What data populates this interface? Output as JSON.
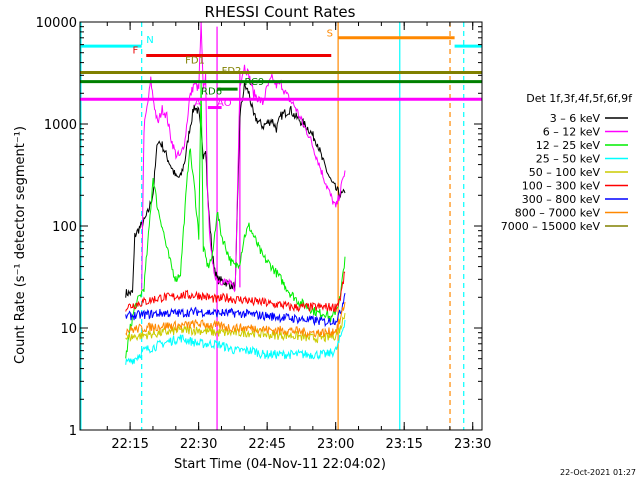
{
  "chart_data": {
    "type": "line",
    "title": "RHESSI Count Rates",
    "xlabel": "Start Time (04-Nov-11 22:04:02)",
    "ylabel": "Count Rate (s⁻¹ detector segment⁻¹)",
    "yscale": "log",
    "ylim": [
      1,
      10000
    ],
    "xlim_minutes_after_start": [
      0,
      88
    ],
    "yticks": [
      1,
      10,
      100,
      1000,
      10000
    ],
    "ytick_labels": [
      "1",
      "10",
      "100",
      "1000",
      "10000"
    ],
    "xticks": [
      "22:15",
      "22:30",
      "22:45",
      "23:00",
      "23:15",
      "23:30"
    ],
    "legend": {
      "title": "Det 1f,3f,4f,5f,6f,9f",
      "placement": "right"
    },
    "series": [
      {
        "name": "3 – 6 keV",
        "color": "#000000",
        "points": [
          [
            10.0,
            22
          ],
          [
            11.5,
            22
          ],
          [
            12,
            80
          ],
          [
            13,
            95
          ],
          [
            14,
            110
          ],
          [
            15,
            140
          ],
          [
            16,
            210
          ],
          [
            17,
            700
          ],
          [
            17.5,
            650
          ],
          [
            18,
            620
          ],
          [
            19,
            480
          ],
          [
            20,
            380
          ],
          [
            21,
            300
          ],
          [
            22,
            300
          ],
          [
            23,
            450
          ],
          [
            24,
            900
          ],
          [
            25,
            1500
          ],
          [
            26,
            1300
          ],
          [
            27,
            500
          ],
          [
            27.5,
            600
          ],
          [
            28,
            180
          ],
          [
            29,
            50
          ],
          [
            30,
            30
          ],
          [
            32,
            28
          ],
          [
            34,
            25
          ],
          [
            35,
            1200
          ],
          [
            36,
            2400
          ],
          [
            37,
            2000
          ],
          [
            38,
            1200
          ],
          [
            40,
            950
          ],
          [
            42,
            1100
          ],
          [
            43,
            900
          ],
          [
            44,
            1200
          ],
          [
            46,
            1400
          ],
          [
            47,
            1200
          ],
          [
            48,
            1100
          ],
          [
            50,
            900
          ],
          [
            52,
            650
          ],
          [
            53,
            450
          ],
          [
            54,
            350
          ],
          [
            55,
            270
          ],
          [
            56,
            230
          ],
          [
            57,
            200
          ],
          [
            58,
            210
          ]
        ]
      },
      {
        "name": "6 – 12 keV",
        "color": "#ff00ff",
        "points": [
          [
            13.5,
            25
          ],
          [
            14,
            900
          ],
          [
            15,
            1800
          ],
          [
            15.5,
            2700
          ],
          [
            16,
            1800
          ],
          [
            17,
            1000
          ],
          [
            18,
            1400
          ],
          [
            19,
            1200
          ],
          [
            20,
            700
          ],
          [
            21,
            500
          ],
          [
            22,
            480
          ],
          [
            23,
            700
          ],
          [
            24,
            1800
          ],
          [
            25,
            2500
          ],
          [
            26,
            2200
          ],
          [
            26.5,
            9500
          ],
          [
            27,
            2000
          ],
          [
            27.5,
            3000
          ],
          [
            28,
            150
          ],
          [
            29,
            40
          ],
          [
            30,
            30
          ],
          [
            32,
            28
          ],
          [
            34,
            25
          ],
          [
            35,
            2500
          ],
          [
            36,
            3700
          ],
          [
            37,
            3000
          ],
          [
            38,
            2000
          ],
          [
            40,
            1600
          ],
          [
            41,
            2300
          ],
          [
            42,
            2800
          ],
          [
            43,
            2400
          ],
          [
            44,
            2500
          ],
          [
            45,
            2000
          ],
          [
            46,
            1700
          ],
          [
            47,
            1500
          ],
          [
            48,
            1200
          ],
          [
            49,
            950
          ],
          [
            50,
            800
          ],
          [
            51,
            600
          ],
          [
            52,
            450
          ],
          [
            53,
            330
          ],
          [
            54,
            250
          ],
          [
            55,
            190
          ],
          [
            56,
            150
          ],
          [
            57,
            220
          ],
          [
            58,
            350
          ]
        ]
      },
      {
        "name": "12 – 25 keV",
        "color": "#00ee00",
        "points": [
          [
            10.0,
            5
          ],
          [
            11,
            10
          ],
          [
            12,
            16
          ],
          [
            13,
            20
          ],
          [
            14,
            25
          ],
          [
            15,
            80
          ],
          [
            16,
            300
          ],
          [
            17,
            150
          ],
          [
            18,
            100
          ],
          [
            19,
            60
          ],
          [
            20,
            40
          ],
          [
            21,
            30
          ],
          [
            22,
            35
          ],
          [
            23,
            150
          ],
          [
            24,
            600
          ],
          [
            25,
            250
          ],
          [
            26,
            80
          ],
          [
            26.5,
            2500
          ],
          [
            27,
            60
          ],
          [
            28,
            40
          ],
          [
            29,
            50
          ],
          [
            30,
            140
          ],
          [
            31,
            80
          ],
          [
            32,
            60
          ],
          [
            33,
            45
          ],
          [
            34,
            40
          ],
          [
            35,
            45
          ],
          [
            36,
            80
          ],
          [
            37,
            100
          ],
          [
            38,
            80
          ],
          [
            40,
            50
          ],
          [
            42,
            40
          ],
          [
            44,
            30
          ],
          [
            46,
            22
          ],
          [
            48,
            18
          ],
          [
            50,
            16
          ],
          [
            52,
            14
          ],
          [
            54,
            14
          ],
          [
            55,
            12
          ],
          [
            56,
            15
          ],
          [
            57,
            20
          ],
          [
            58,
            50
          ]
        ]
      },
      {
        "name": "25 – 50 keV",
        "color": "#00ffff",
        "points": [
          [
            10.0,
            4.5
          ],
          [
            12,
            5
          ],
          [
            14,
            6
          ],
          [
            16,
            6.5
          ],
          [
            18,
            7
          ],
          [
            20,
            7.5
          ],
          [
            22,
            8
          ],
          [
            24,
            7.5
          ],
          [
            26,
            7
          ],
          [
            28,
            7
          ],
          [
            30,
            7
          ],
          [
            32,
            6.5
          ],
          [
            34,
            6
          ],
          [
            36,
            6
          ],
          [
            38,
            6
          ],
          [
            40,
            5.5
          ],
          [
            42,
            5.5
          ],
          [
            44,
            5.5
          ],
          [
            46,
            5.5
          ],
          [
            48,
            5.5
          ],
          [
            50,
            5.5
          ],
          [
            52,
            5.5
          ],
          [
            54,
            5.5
          ],
          [
            56,
            6
          ],
          [
            57,
            8
          ],
          [
            58,
            12
          ]
        ]
      },
      {
        "name": "50 – 100 keV",
        "color": "#cccc00",
        "points": [
          [
            10.0,
            8
          ],
          [
            14,
            8.5
          ],
          [
            18,
            9
          ],
          [
            22,
            9.5
          ],
          [
            26,
            9.5
          ],
          [
            30,
            9
          ],
          [
            34,
            9
          ],
          [
            38,
            9
          ],
          [
            42,
            8.5
          ],
          [
            46,
            8.5
          ],
          [
            50,
            8
          ],
          [
            54,
            8
          ],
          [
            56,
            8.5
          ],
          [
            57,
            10
          ],
          [
            58,
            14
          ]
        ]
      },
      {
        "name": "100 – 300 keV",
        "color": "#ff0000",
        "points": [
          [
            10.0,
            16
          ],
          [
            12,
            17
          ],
          [
            14,
            18
          ],
          [
            16,
            19
          ],
          [
            18,
            20
          ],
          [
            20,
            20
          ],
          [
            22,
            21
          ],
          [
            24,
            21
          ],
          [
            26,
            21
          ],
          [
            28,
            20
          ],
          [
            30,
            19
          ],
          [
            32,
            20
          ],
          [
            34,
            19
          ],
          [
            36,
            19
          ],
          [
            38,
            18
          ],
          [
            40,
            18
          ],
          [
            42,
            17
          ],
          [
            44,
            17
          ],
          [
            46,
            16
          ],
          [
            48,
            16
          ],
          [
            50,
            16
          ],
          [
            52,
            16
          ],
          [
            54,
            16
          ],
          [
            56,
            16
          ],
          [
            57,
            20
          ],
          [
            58,
            35
          ]
        ]
      },
      {
        "name": "300 – 800 keV",
        "color": "#0000ff",
        "points": [
          [
            10.0,
            13
          ],
          [
            14,
            13.5
          ],
          [
            18,
            14
          ],
          [
            22,
            14
          ],
          [
            26,
            14.5
          ],
          [
            30,
            14
          ],
          [
            34,
            14
          ],
          [
            38,
            13.5
          ],
          [
            42,
            13
          ],
          [
            46,
            12.5
          ],
          [
            50,
            12
          ],
          [
            54,
            11.5
          ],
          [
            56,
            12
          ],
          [
            57,
            14
          ],
          [
            58,
            22
          ]
        ]
      },
      {
        "name": "800 – 7000 keV",
        "color": "#ff8800",
        "points": [
          [
            10.0,
            9.5
          ],
          [
            14,
            10
          ],
          [
            18,
            10.5
          ],
          [
            22,
            10.5
          ],
          [
            26,
            11
          ],
          [
            30,
            10.5
          ],
          [
            34,
            10
          ],
          [
            38,
            10
          ],
          [
            42,
            9.5
          ],
          [
            46,
            9.5
          ],
          [
            50,
            9
          ],
          [
            54,
            9
          ],
          [
            56,
            9.5
          ],
          [
            57,
            12
          ],
          [
            58,
            18
          ]
        ]
      },
      {
        "name": "7000 – 15000 keV",
        "color": "#808000",
        "points": []
      }
    ],
    "flag_bars": [
      {
        "label": "N",
        "color": "#00ffff",
        "segments": [
          [
            0,
            13.5
          ],
          [
            82,
            88
          ]
        ],
        "y": 5800
      },
      {
        "label": "F",
        "color": "#ee0000",
        "segments": [
          [
            14.5,
            55
          ]
        ],
        "y": 4700
      },
      {
        "label": "FD1",
        "color": "#808000",
        "segments": [
          [
            0,
            88
          ]
        ],
        "y": 3200
      },
      {
        "label": "FD2",
        "color": "#008000",
        "segments": [
          [
            0,
            88
          ]
        ],
        "y": 2600
      },
      {
        "label": "RD6",
        "color": "#008000",
        "segments": [
          [
            30,
            34.5
          ]
        ],
        "y": 2200
      },
      {
        "label": "A",
        "color": "#ff00ff",
        "segments": [
          [
            0,
            88
          ]
        ],
        "y": 1750
      },
      {
        "label": "AO",
        "color": "#ff00ff",
        "segments": [
          [
            28,
            31
          ]
        ],
        "y": 1450
      },
      {
        "label": "S",
        "color": "#ff8800",
        "segments": [
          [
            56.5,
            82
          ]
        ],
        "y": 7000
      }
    ],
    "flag_labels": [
      {
        "text": "N",
        "color": "#00ffff",
        "x": 14.5,
        "y": 6200
      },
      {
        "text": "F",
        "color": "#ee0000",
        "x": 11.5,
        "y": 4900
      },
      {
        "text": "FD1",
        "color": "#808000",
        "x": 23,
        "y": 3900
      },
      {
        "text": "FD2",
        "color": "#808000",
        "x": 31,
        "y": 3100
      },
      {
        "text": "RC9",
        "color": "#008000",
        "x": 36,
        "y": 2400
      },
      {
        "text": "RD6",
        "color": "#008000",
        "x": 26.5,
        "y": 1950
      },
      {
        "text": "A",
        "color": "#ff00ff",
        "x": 25,
        "y": 1500
      },
      {
        "text": "AO",
        "color": "#ff00ff",
        "x": 30,
        "y": 1500
      },
      {
        "text": "S",
        "color": "#ff8800",
        "x": 54,
        "y": 7200
      }
    ],
    "vertical_lines": [
      {
        "x": 0.2,
        "color": "#00ffff",
        "style": "solid"
      },
      {
        "x": 13.5,
        "color": "#00ffff",
        "style": "dashed"
      },
      {
        "x": 56.5,
        "color": "#ff8800",
        "style": "solid"
      },
      {
        "x": 70,
        "color": "#00ffff",
        "style": "solid"
      },
      {
        "x": 81,
        "color": "#ff8800",
        "style": "dashed"
      },
      {
        "x": 84,
        "color": "#00ffff",
        "style": "dashed"
      },
      {
        "x": 30,
        "color": "#ff00ff",
        "style": "solid",
        "ymin": 1,
        "ymax": 9000
      },
      {
        "x": 35,
        "color": "#ff00ff",
        "style": "solid",
        "ymin": 25,
        "ymax": 3200
      }
    ],
    "grid": false,
    "timestamp": "22-Oct-2021 01:27"
  }
}
